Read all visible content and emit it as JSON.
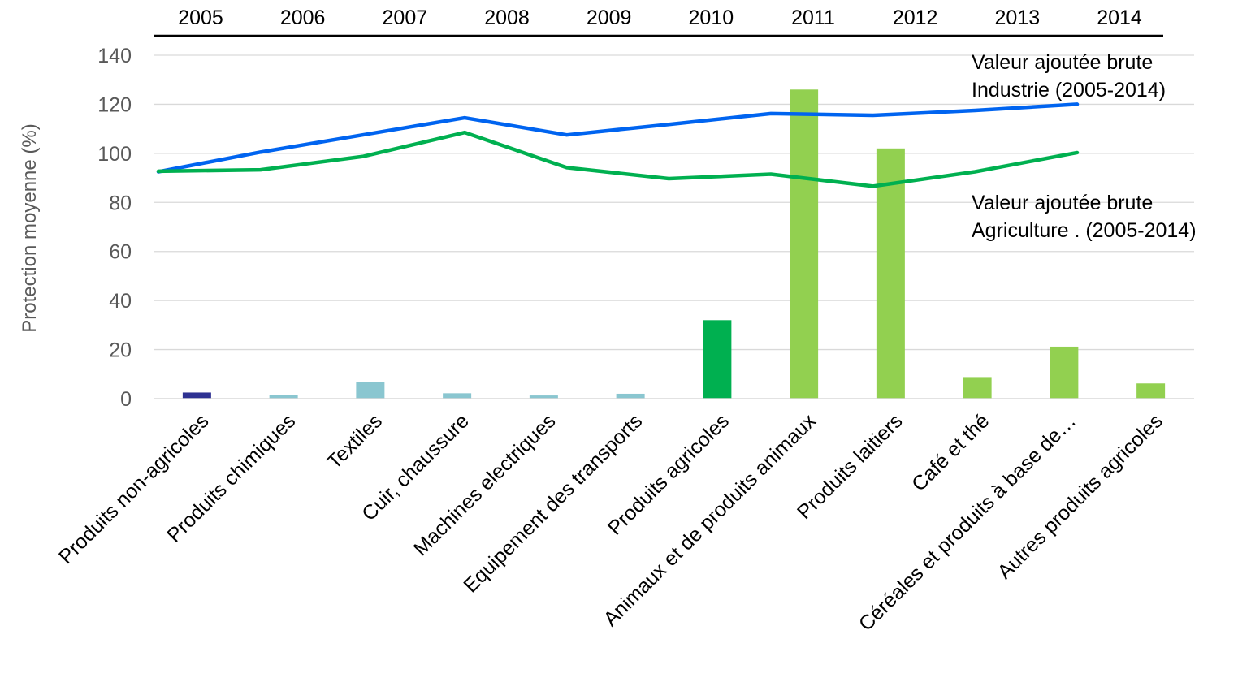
{
  "chart_data": {
    "type": "bar",
    "ylabel": "Protection moyenne (%)",
    "ylim": [
      0,
      140
    ],
    "yticks": [
      0,
      20,
      40,
      60,
      80,
      100,
      120,
      140
    ],
    "grid": true,
    "categories": [
      "Produits non-agricoles",
      "Produits chimiques",
      "Textiles",
      "Cuir, chaussure",
      "Machines electriques",
      "Equipement des transports",
      "Produits agricoles",
      "Animaux et de produits animaux",
      "Produits laitiers",
      "Café et thé",
      "Céréales et produits à base de…",
      "Autres produits agricoles"
    ],
    "values": [
      2.5,
      1.5,
      6.8,
      2.2,
      1.3,
      2.0,
      32.0,
      126.0,
      102.0,
      8.8,
      21.2,
      6.2
    ],
    "bar_colors": [
      "#2E3192",
      "#8AC6D0",
      "#8AC6D0",
      "#8AC6D0",
      "#8AC6D0",
      "#8AC6D0",
      "#00B050",
      "#92D050",
      "#92D050",
      "#92D050",
      "#92D050",
      "#92D050"
    ],
    "top_axis_years": [
      "2005",
      "2006",
      "2007",
      "2008",
      "2009",
      "2010",
      "2011",
      "2012",
      "2013",
      "2014"
    ],
    "lines": [
      {
        "name": "Valeur ajoutée brute Industrie (2005-2014)",
        "label_lines": [
          "Valeur ajoutée brute",
          "Industrie (2005-2014)"
        ],
        "color": "#0064F0",
        "years": [
          "2005",
          "2006",
          "2007",
          "2008",
          "2009",
          "2010",
          "2011",
          "2012",
          "2013",
          "2014"
        ],
        "values": [
          92.5,
          100.5,
          107.5,
          114.5,
          107.5,
          111.8,
          116.2,
          115.5,
          117.5,
          120.0
        ]
      },
      {
        "name": "Valeur ajoutée brute Agriculture . (2005-2014)",
        "label_lines": [
          "Valeur ajoutée brute",
          "Agriculture . (2005-2014)"
        ],
        "color": "#00B050",
        "years": [
          "2005",
          "2006",
          "2007",
          "2008",
          "2009",
          "2010",
          "2011",
          "2012",
          "2013",
          "2014"
        ],
        "values": [
          92.7,
          93.3,
          98.7,
          108.5,
          94.2,
          89.7,
          91.5,
          86.6,
          92.5,
          100.3
        ]
      }
    ]
  }
}
